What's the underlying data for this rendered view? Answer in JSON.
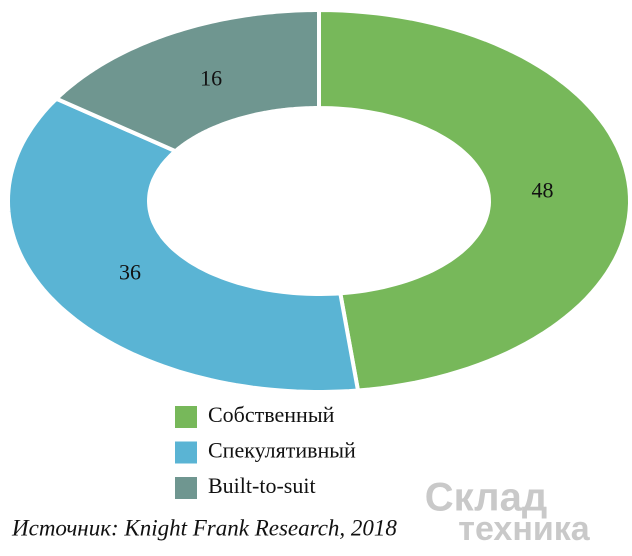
{
  "chart_data": {
    "type": "pie",
    "donut": true,
    "categories": [
      "Собственный",
      "Спекулятивный",
      "Built-to-suit"
    ],
    "values": [
      48,
      36,
      16
    ],
    "colors": [
      "#77b85a",
      "#5ab4d4",
      "#6f9690"
    ],
    "source": "Источник: Knight Frank Research, 2018"
  },
  "watermark": {
    "line1": "Склад",
    "line2": "техника"
  }
}
